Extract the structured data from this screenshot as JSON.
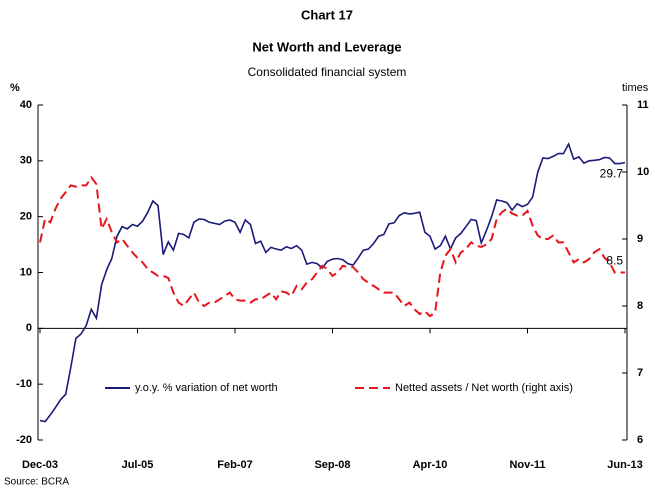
{
  "chart_data": {
    "type": "line",
    "title": "Chart 17",
    "subtitle": "Net Worth and Leverage",
    "subtitle2": "Consolidated financial system",
    "ylabel": "%",
    "y2label": "times",
    "source": "Source: BCRA",
    "categories": [
      "Dec-03",
      null,
      null,
      null,
      null,
      null,
      null,
      null,
      null,
      null,
      null,
      null,
      null,
      null,
      null,
      null,
      null,
      null,
      null,
      "Jul-05",
      null,
      null,
      null,
      null,
      null,
      null,
      null,
      null,
      null,
      null,
      null,
      null,
      null,
      null,
      null,
      null,
      null,
      null,
      "Feb-07",
      null,
      null,
      null,
      null,
      null,
      null,
      null,
      null,
      null,
      null,
      null,
      null,
      null,
      null,
      null,
      null,
      null,
      null,
      "Sep-08",
      null,
      null,
      null,
      null,
      null,
      null,
      null,
      null,
      null,
      null,
      null,
      null,
      null,
      null,
      null,
      null,
      null,
      null,
      "Apr-10",
      null,
      null,
      null,
      null,
      null,
      null,
      null,
      null,
      null,
      null,
      null,
      null,
      null,
      null,
      null,
      null,
      null,
      null,
      "Nov-11",
      null,
      null,
      null,
      null,
      null,
      null,
      null,
      null,
      null,
      null,
      null,
      null,
      null,
      null,
      null,
      null,
      null,
      null,
      "Jun-13"
    ],
    "series": [
      {
        "name": "y.o.y. % variation of net worth",
        "color": "#1a1a7a",
        "dash": false,
        "values": [
          -16.5,
          -16.7,
          -15.5,
          -14.2,
          -12.8,
          -11.8,
          -7,
          -1.8,
          -1,
          0.5,
          3.4,
          1.8,
          7.8,
          10.5,
          12.5,
          16.5,
          18.2,
          17.8,
          18.6,
          18.3,
          19.2,
          20.8,
          22.8,
          22,
          13.2,
          15.5,
          14,
          17,
          16.8,
          16.2,
          19,
          19.6,
          19.5,
          19,
          18.8,
          18.6,
          19.2,
          19.4,
          19,
          17.2,
          19.4,
          18.6,
          15.2,
          15.6,
          13.6,
          14.5,
          14.2,
          14,
          14.6,
          14.3,
          14.8,
          14,
          11.5,
          11.8,
          11.6,
          10.8,
          12,
          12.4,
          12.5,
          12.3,
          11.6,
          11.3,
          12.6,
          14,
          14.2,
          15.2,
          16.5,
          16.8,
          18.7,
          18.9,
          20.2,
          20.7,
          20.5,
          20.6,
          20.8,
          17.2,
          16.5,
          14.2,
          14.8,
          16.5,
          14.2,
          16.2,
          17,
          18.2,
          19.5,
          19.3,
          15.3,
          17.5,
          20,
          23,
          22.8,
          22.5,
          21.2,
          22.3,
          21.8,
          22.2,
          23.5,
          28,
          30.5,
          30.4,
          30.8,
          31.3,
          31.3,
          33,
          30.3,
          30.7,
          29.6,
          30,
          30.1,
          30.2,
          30.6,
          30.5,
          29.5,
          29.5,
          29.7
        ]
      },
      {
        "name": "Netted assets / Net worth (right axis)",
        "color": "#e8141b",
        "dash": true,
        "axis": "y2",
        "values": [
          8.95,
          9.3,
          9.25,
          9.45,
          9.6,
          9.7,
          9.8,
          9.78,
          9.8,
          9.8,
          9.92,
          9.82,
          9.15,
          9.3,
          9.1,
          8.95,
          9.0,
          8.9,
          8.8,
          8.72,
          8.65,
          8.55,
          8.5,
          8.45,
          8.45,
          8.42,
          8.2,
          8.05,
          8.0,
          8.1,
          8.2,
          8.05,
          8.0,
          8.05,
          8.05,
          8.1,
          8.15,
          8.2,
          8.1,
          8.08,
          8.08,
          8.05,
          8.1,
          8.1,
          8.15,
          8.2,
          8.1,
          8.22,
          8.2,
          8.15,
          8.3,
          8.25,
          8.35,
          8.4,
          8.5,
          8.6,
          8.55,
          8.45,
          8.5,
          8.6,
          8.58,
          8.58,
          8.5,
          8.4,
          8.35,
          8.3,
          8.25,
          8.2,
          8.2,
          8.2,
          8.1,
          8.0,
          8.05,
          7.95,
          7.88,
          7.92,
          7.85,
          7.9,
          8.5,
          8.75,
          8.85,
          8.65,
          8.8,
          8.85,
          8.95,
          8.9,
          8.88,
          8.92,
          9.0,
          9.3,
          9.4,
          9.45,
          9.38,
          9.35,
          9.35,
          9.42,
          9.2,
          9.05,
          9.0,
          9.0,
          9.05,
          8.95,
          8.95,
          8.8,
          8.65,
          8.7,
          8.65,
          8.7,
          8.8,
          8.85,
          8.72,
          8.65,
          8.5,
          8.5,
          8.5
        ]
      }
    ],
    "annotations": [
      "29.7",
      "8.5"
    ],
    "ylim": [
      -20,
      40
    ],
    "yticks": [
      -20,
      -10,
      0,
      10,
      20,
      30,
      40
    ],
    "y2lim": [
      6,
      11
    ],
    "y2ticks": [
      6,
      7,
      8,
      9,
      10,
      11
    ]
  }
}
